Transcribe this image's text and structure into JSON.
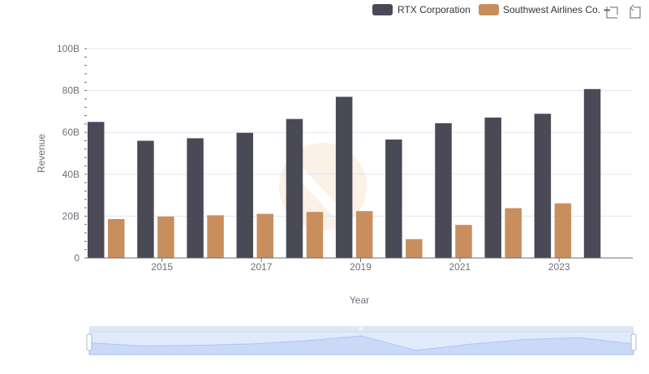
{
  "toolbar": {
    "zoom_icon": "zoom-icon",
    "restore_icon": "restore-icon"
  },
  "chart_data": {
    "type": "bar",
    "title": "",
    "xlabel": "Year",
    "ylabel": "Revenue",
    "ylim": [
      0,
      100000000000
    ],
    "y_ticks": [
      "0",
      "20B",
      "40B",
      "60B",
      "80B",
      "100B"
    ],
    "x_tick_labels": [
      "2015",
      "2017",
      "2019",
      "2021",
      "2023"
    ],
    "categories": [
      "2014",
      "2015",
      "2016",
      "2017",
      "2018",
      "2019",
      "2020",
      "2021",
      "2022",
      "2023",
      "2024"
    ],
    "grid": true,
    "legend_position": "top-right",
    "series": [
      {
        "name": "RTX Corporation",
        "color": "#4a4a56",
        "values": [
          65000000000,
          56000000000,
          57200000000,
          59800000000,
          66400000000,
          77000000000,
          56600000000,
          64400000000,
          67100000000,
          68900000000,
          80700000000
        ]
      },
      {
        "name": "Southwest Airlines Co.",
        "color": "#c98e5d",
        "values": [
          18600000000,
          19800000000,
          20400000000,
          21100000000,
          22000000000,
          22400000000,
          9000000000,
          15800000000,
          23800000000,
          26100000000,
          null
        ]
      }
    ],
    "data_zoom": {
      "start_percent": 0,
      "end_percent": 100
    }
  }
}
